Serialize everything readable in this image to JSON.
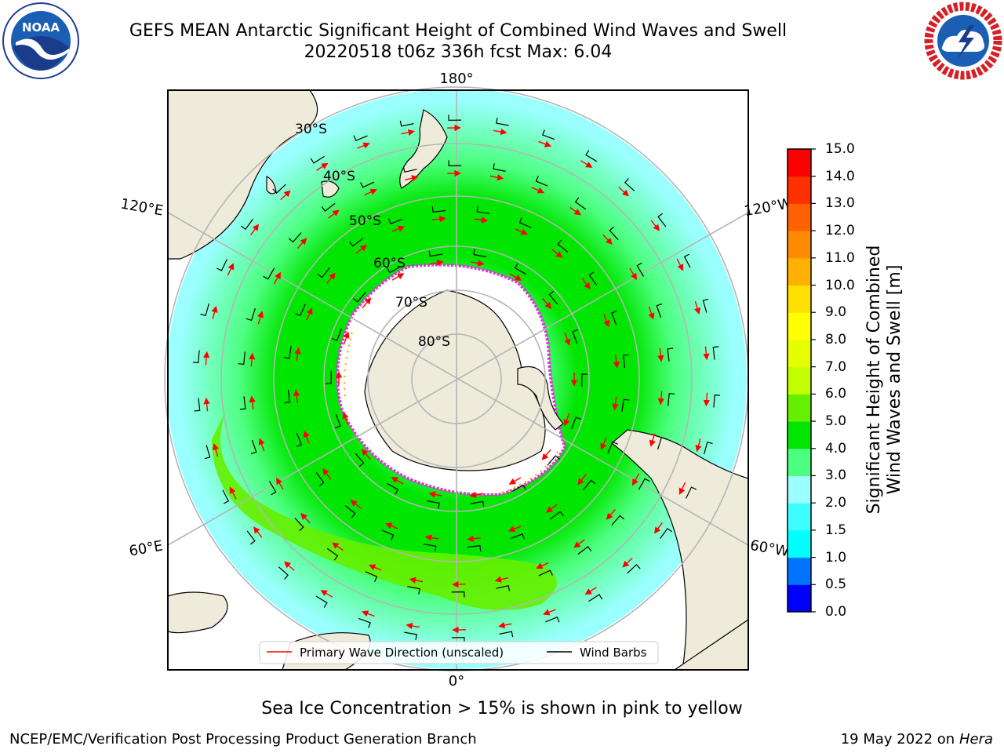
{
  "header": {
    "title_line1": "GEFS MEAN Antarctic Significant Height of Combined Wind Waves and Swell",
    "title_line2": "20220518 t06z 336h fcst   Max: 6.04"
  },
  "logos": {
    "left": "noaa-logo",
    "left_text": "NOAA",
    "right": "nws-logo"
  },
  "map": {
    "projection": "south-polar-stereographic",
    "meridian_labels": [
      "180°",
      "120°E",
      "120°W",
      "60°E",
      "60°W",
      "0°"
    ],
    "latitude_labels": [
      "30°S",
      "40°S",
      "50°S",
      "60°S",
      "70°S",
      "80°S"
    ],
    "colors": {
      "land": "#efebdb",
      "ice": "#ffffff",
      "ice_edge": "#e62fe6",
      "ice_edge_accent": "#ffb300",
      "wave_direction_arrow": "#ff0000",
      "wind_barb": "#000000",
      "grid": "#b4b4b4"
    },
    "legend": {
      "arrow_label": "Primary Wave Direction (unscaled)",
      "barb_label": "Wind Barbs"
    }
  },
  "colorbar": {
    "title_line1": "Significant Height of Combined",
    "title_line2": "Wind Waves and Swell [m]",
    "ticks": [
      "15.0",
      "14.0",
      "13.0",
      "12.0",
      "11.0",
      "10.0",
      "9.0",
      "8.0",
      "7.0",
      "6.0",
      "5.0",
      "4.0",
      "3.0",
      "2.0",
      "1.5",
      "1.0",
      "0.5",
      "0.0"
    ],
    "colors_bottom_to_top": [
      "#0000ff",
      "#0073ff",
      "#00ffff",
      "#3dffff",
      "#9bffff",
      "#4dff80",
      "#00e600",
      "#66f000",
      "#c3ff00",
      "#e6ff00",
      "#ffff00",
      "#ffe000",
      "#ffb000",
      "#ff8c00",
      "#ff6000",
      "#ff3000",
      "#ff0000"
    ]
  },
  "caption": "Sea Ice Concentration > 15% is shown in pink to yellow",
  "footer": {
    "left": "NCEP/EMC/Verification Post Processing Product Generation Branch",
    "right_date": "19 May 2022 on",
    "right_host": "Hera"
  }
}
